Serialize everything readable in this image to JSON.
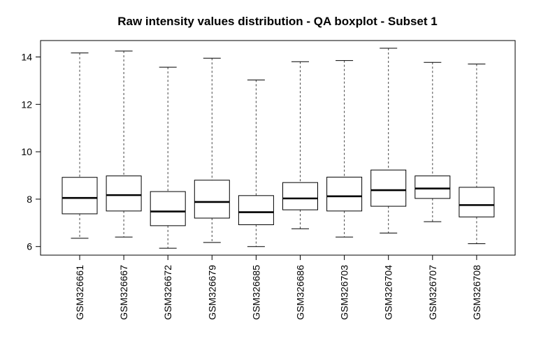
{
  "chart_data": {
    "type": "boxplot",
    "title": "Raw intensity values distribution - QA boxplot - Subset 1",
    "xlabel": "",
    "ylabel": "",
    "ylim": [
      5.6,
      14.7
    ],
    "yticks": [
      6,
      8,
      10,
      12,
      14
    ],
    "ytick_labels": [
      "6",
      "8",
      "10",
      "12",
      "14"
    ],
    "grid": false,
    "legend": "none",
    "categories": [
      "GSM326661",
      "GSM326667",
      "GSM326672",
      "GSM326679",
      "GSM326685",
      "GSM326686",
      "GSM326703",
      "GSM326704",
      "GSM326707",
      "GSM326708"
    ],
    "boxes": [
      {
        "label": "GSM326661",
        "whisker_low": 6.35,
        "q1": 7.38,
        "median": 8.05,
        "q3": 8.92,
        "whisker_high": 14.17
      },
      {
        "label": "GSM326667",
        "whisker_low": 6.4,
        "q1": 7.5,
        "median": 8.17,
        "q3": 8.98,
        "whisker_high": 14.25
      },
      {
        "label": "GSM326672",
        "whisker_low": 5.93,
        "q1": 6.88,
        "median": 7.48,
        "q3": 8.32,
        "whisker_high": 13.57
      },
      {
        "label": "GSM326679",
        "whisker_low": 6.17,
        "q1": 7.2,
        "median": 7.88,
        "q3": 8.8,
        "whisker_high": 13.95
      },
      {
        "label": "GSM326685",
        "whisker_low": 6.0,
        "q1": 6.92,
        "median": 7.45,
        "q3": 8.15,
        "whisker_high": 13.03
      },
      {
        "label": "GSM326686",
        "whisker_low": 6.75,
        "q1": 7.55,
        "median": 8.03,
        "q3": 8.7,
        "whisker_high": 13.8
      },
      {
        "label": "GSM326703",
        "whisker_low": 6.4,
        "q1": 7.5,
        "median": 8.12,
        "q3": 8.93,
        "whisker_high": 13.85
      },
      {
        "label": "GSM326704",
        "whisker_low": 6.57,
        "q1": 7.7,
        "median": 8.38,
        "q3": 9.23,
        "whisker_high": 14.37
      },
      {
        "label": "GSM326707",
        "whisker_low": 7.05,
        "q1": 8.03,
        "median": 8.45,
        "q3": 8.98,
        "whisker_high": 13.77
      },
      {
        "label": "GSM326708",
        "whisker_low": 6.12,
        "q1": 7.25,
        "median": 7.75,
        "q3": 8.5,
        "whisker_high": 13.7
      }
    ],
    "colors": {
      "box_fill": "#ffffff",
      "stroke": "#000000",
      "whisker": "#444444"
    }
  }
}
